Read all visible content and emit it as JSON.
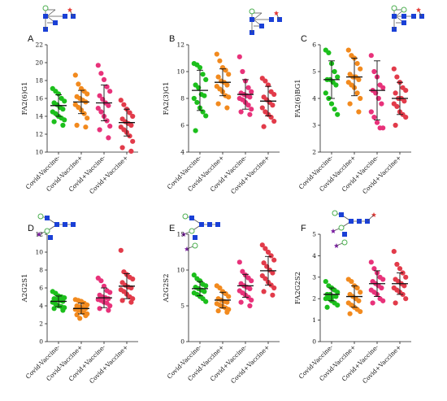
{
  "figure": {
    "title": ""
  },
  "colors": {
    "Covid-Vaccine-": "#1cbf1c",
    "Covid-Vaccine+": "#f28a1e",
    "Covid+Vaccine-": "#e8327a",
    "Covid+Vaccine+": "#e23b4a",
    "glycan_green": "#4caf50",
    "glycan_blue": "#1a40d6",
    "glycan_red": "#e53935",
    "glycan_purple": "#7b1fa2"
  },
  "chart_data": [
    {
      "id": "A",
      "panel_label": "A",
      "type": "scatter",
      "ylabel": "FA2(6)G1",
      "ylim": [
        10,
        22
      ],
      "yticks": [
        10,
        12,
        14,
        16,
        18,
        20,
        22
      ],
      "categories": [
        "Covid-Vaccine-",
        "Covid-Vaccine+",
        "Covid+Vaccine-",
        "Covid+Vaccine+"
      ],
      "series": [
        {
          "values": [
            17.1,
            16.8,
            16.5,
            16.0,
            15.7,
            15.5,
            15.3,
            15.0,
            14.8,
            14.5,
            14.3,
            14.0,
            13.8,
            13.6,
            13.4,
            13.0
          ],
          "mean": 15.2,
          "sd": 1.2
        },
        {
          "values": [
            18.6,
            17.6,
            17.1,
            16.8,
            16.5,
            16.2,
            16.0,
            15.8,
            15.6,
            15.3,
            15.0,
            14.7,
            14.3,
            13.8,
            13.0,
            12.8
          ],
          "mean": 15.6,
          "sd": 1.3
        },
        {
          "values": [
            19.7,
            18.8,
            18.1,
            17.3,
            16.8,
            16.3,
            15.9,
            15.5,
            15.2,
            14.9,
            14.5,
            14.0,
            13.5,
            12.9,
            12.5,
            11.6
          ],
          "mean": 15.5,
          "sd": 2.0
        },
        {
          "values": [
            15.8,
            15.3,
            14.8,
            14.4,
            14.0,
            13.7,
            13.4,
            13.2,
            13.0,
            12.8,
            12.5,
            12.2,
            11.8,
            11.2,
            10.5,
            10.1
          ],
          "mean": 13.3,
          "sd": 1.5
        }
      ]
    },
    {
      "id": "B",
      "panel_label": "B",
      "type": "scatter",
      "ylabel": "FA2(3)G1",
      "ylim": [
        4,
        12
      ],
      "yticks": [
        4,
        6,
        8,
        10,
        12
      ],
      "categories": [
        "Covid-Vaccine-",
        "Covid-Vaccine+",
        "Covid+Vaccine-",
        "Covid+Vaccine+"
      ],
      "series": [
        {
          "values": [
            10.6,
            10.5,
            10.3,
            9.8,
            9.4,
            9.0,
            8.8,
            8.3,
            8.2,
            8.0,
            7.7,
            7.3,
            7.0,
            6.7,
            5.6
          ],
          "mean": 8.6,
          "sd": 1.5
        },
        {
          "values": [
            11.3,
            10.8,
            10.3,
            10.1,
            9.8,
            9.6,
            9.3,
            9.2,
            9.0,
            8.9,
            8.7,
            8.5,
            8.2,
            8.1,
            7.6,
            7.3
          ],
          "mean": 9.2,
          "sd": 1.0
        },
        {
          "values": [
            11.1,
            10.0,
            9.3,
            8.8,
            8.5,
            8.4,
            8.3,
            8.2,
            8.1,
            8.0,
            7.9,
            7.7,
            7.5,
            7.2,
            7.0,
            6.8
          ],
          "mean": 8.3,
          "sd": 1.1
        },
        {
          "values": [
            9.5,
            9.3,
            9.0,
            8.5,
            8.3,
            8.1,
            7.9,
            7.7,
            7.5,
            7.3,
            7.0,
            6.8,
            6.6,
            6.3,
            5.9
          ],
          "mean": 7.8,
          "sd": 1.1
        }
      ]
    },
    {
      "id": "C",
      "panel_label": "C",
      "type": "scatter",
      "ylabel": "FA2(6)BG1",
      "ylim": [
        2,
        6
      ],
      "yticks": [
        2,
        3,
        4,
        5,
        6
      ],
      "categories": [
        "Covid-Vaccine-",
        "Covid-Vaccine+",
        "Covid+Vaccine-",
        "Covid+Vaccine+"
      ],
      "series": [
        {
          "values": [
            5.8,
            5.7,
            5.3,
            5.0,
            4.8,
            4.7,
            4.7,
            4.6,
            4.5,
            4.2,
            4.0,
            3.8,
            3.6,
            3.4
          ],
          "mean": 4.7,
          "sd": 0.7
        },
        {
          "values": [
            5.8,
            5.6,
            5.5,
            5.3,
            5.1,
            4.9,
            4.8,
            4.8,
            4.7,
            4.6,
            4.5,
            4.4,
            4.2,
            4.0,
            3.8,
            3.5
          ],
          "mean": 4.8,
          "sd": 0.7
        },
        {
          "values": [
            5.6,
            5.0,
            4.8,
            4.5,
            4.4,
            4.3,
            4.2,
            4.0,
            3.8,
            3.5,
            3.3,
            3.1,
            2.9,
            2.9
          ],
          "mean": 4.3,
          "sd": 1.1
        },
        {
          "values": [
            5.1,
            4.8,
            4.6,
            4.4,
            4.3,
            4.2,
            4.0,
            4.0,
            3.9,
            3.8,
            3.7,
            3.5,
            3.4,
            3.3,
            3.0
          ],
          "mean": 4.0,
          "sd": 0.6
        }
      ]
    },
    {
      "id": "D",
      "panel_label": "D",
      "type": "scatter",
      "ylabel": "A2G2S1",
      "ylim": [
        0,
        12
      ],
      "yticks": [
        0,
        2,
        4,
        6,
        8,
        10,
        12
      ],
      "categories": [
        "Covid-Vaccine-",
        "Covid-Vaccine+",
        "Covid+Vaccine-",
        "Covid+Vaccine+"
      ],
      "series": [
        {
          "values": [
            5.6,
            5.4,
            5.1,
            5.0,
            4.9,
            4.8,
            4.7,
            4.6,
            4.5,
            4.4,
            4.2,
            4.0,
            3.9,
            3.8,
            3.7,
            3.5
          ],
          "mean": 4.5,
          "sd": 0.6
        },
        {
          "values": [
            4.7,
            4.6,
            4.5,
            4.3,
            4.1,
            4.0,
            3.9,
            3.8,
            3.7,
            3.6,
            3.5,
            3.4,
            3.2,
            3.1,
            3.0,
            2.9,
            2.6
          ],
          "mean": 3.7,
          "sd": 0.6
        },
        {
          "values": [
            7.1,
            6.8,
            6.2,
            5.7,
            5.5,
            5.2,
            5.0,
            4.9,
            4.8,
            4.7,
            4.6,
            4.4,
            4.3,
            4.0,
            3.7,
            3.5
          ],
          "mean": 4.9,
          "sd": 1.1
        },
        {
          "values": [
            10.2,
            7.8,
            7.5,
            7.2,
            7.0,
            6.6,
            6.3,
            6.1,
            6.0,
            5.8,
            5.6,
            5.3,
            5.0,
            4.8,
            4.6,
            4.4
          ],
          "mean": 6.2,
          "sd": 1.4
        }
      ]
    },
    {
      "id": "E",
      "panel_label": "E",
      "type": "scatter",
      "ylabel": "A2G2S2",
      "ylim": [
        0,
        15
      ],
      "yticks": [
        0,
        5,
        10,
        15
      ],
      "categories": [
        "Covid-Vaccine-",
        "Covid-Vaccine+",
        "Covid+Vaccine-",
        "Covid+Vaccine+"
      ],
      "series": [
        {
          "values": [
            9.3,
            8.8,
            8.5,
            8.0,
            7.8,
            7.6,
            7.4,
            7.2,
            7.0,
            6.8,
            6.6,
            6.3,
            6.0,
            5.6
          ],
          "mean": 7.4,
          "sd": 1.0
        },
        {
          "values": [
            7.8,
            7.5,
            7.0,
            6.7,
            6.3,
            6.0,
            5.8,
            5.6,
            5.5,
            5.3,
            5.1,
            4.9,
            4.7,
            4.5,
            4.3,
            4.1
          ],
          "mean": 5.8,
          "sd": 1.1
        },
        {
          "values": [
            11.1,
            9.8,
            9.3,
            8.9,
            8.5,
            8.1,
            7.8,
            7.6,
            7.4,
            7.1,
            6.8,
            6.5,
            6.2,
            5.8,
            5.5,
            5.0
          ],
          "mean": 7.8,
          "sd": 1.6
        },
        {
          "values": [
            13.5,
            13.0,
            12.5,
            12.0,
            11.4,
            11.0,
            10.5,
            10.0,
            9.6,
            9.2,
            8.8,
            8.3,
            7.9,
            7.5,
            7.0,
            6.5
          ],
          "mean": 9.9,
          "sd": 2.0
        }
      ]
    },
    {
      "id": "F",
      "panel_label": "F",
      "type": "scatter",
      "ylabel": "FA2G2S2",
      "ylim": [
        0,
        5
      ],
      "yticks": [
        0,
        1,
        2,
        3,
        4,
        5
      ],
      "categories": [
        "Covid-Vaccine-",
        "Covid-Vaccine+",
        "Covid+Vaccine-",
        "Covid+Vaccine+"
      ],
      "series": [
        {
          "values": [
            2.8,
            2.6,
            2.5,
            2.4,
            2.3,
            2.2,
            2.2,
            2.1,
            2.1,
            2.0,
            2.0,
            1.9,
            1.8,
            1.7,
            1.6
          ],
          "mean": 2.2,
          "sd": 0.3
        },
        {
          "values": [
            2.9,
            2.8,
            2.6,
            2.5,
            2.3,
            2.2,
            2.1,
            2.0,
            1.9,
            1.8,
            1.7,
            1.6,
            1.5,
            1.4,
            1.3
          ],
          "mean": 2.1,
          "sd": 0.5
        },
        {
          "values": [
            3.7,
            3.4,
            3.2,
            3.0,
            2.9,
            2.8,
            2.7,
            2.6,
            2.5,
            2.4,
            2.3,
            2.2,
            2.0,
            1.9,
            1.8
          ],
          "mean": 2.7,
          "sd": 0.6
        },
        {
          "values": [
            4.2,
            3.6,
            3.4,
            3.2,
            3.0,
            2.9,
            2.8,
            2.7,
            2.6,
            2.5,
            2.4,
            2.3,
            2.2,
            2.0,
            1.8
          ],
          "mean": 2.7,
          "sd": 0.5
        }
      ]
    }
  ]
}
